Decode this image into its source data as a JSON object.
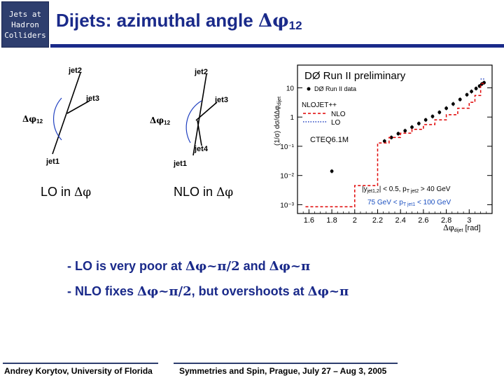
{
  "header": {
    "badge_lines": [
      "Jets at",
      "Hadron",
      "Colliders"
    ],
    "title_text": "Dijets: azimuthal angle ",
    "title_symbol": "Δφ",
    "title_subscript": "12"
  },
  "diagrams": {
    "lo": {
      "labels": [
        "jet2",
        "jet3",
        "jet1"
      ],
      "angle_label": "Δφ",
      "angle_sub": "12",
      "caption_prefix": "LO in ",
      "caption_symbol": "Δφ"
    },
    "nlo": {
      "labels": [
        "jet2",
        "jet3",
        "jet4",
        "jet1"
      ],
      "angle_label": "Δφ",
      "angle_sub": "12",
      "caption_prefix": "NLO in ",
      "caption_symbol": "Δφ"
    }
  },
  "plot": {
    "experiment": "DØ Run II preliminary",
    "ylabel": "(1/σ) dσ/dΔφ",
    "ylabel_sub": "dijet",
    "xlabel": "Δφ",
    "xlabel_sub": "dijet",
    "xunit": "[rad]",
    "legend_data": "DØ Run II data",
    "legend_nlojet": "NLOJET++",
    "legend_nlo": "NLO",
    "legend_lo": "LO",
    "pdf": "CTEQ6.1M",
    "cut1": "|y",
    "cut1_sub": "jet1,2",
    "cut1_tail": "| < 0.5, p",
    "cut1_sub2": "T jet2",
    "cut1_end": " > 40 GeV",
    "cut2": "75 GeV < p",
    "cut2_sub": "T jet1",
    "cut2_end": " < 100 GeV",
    "colors": {
      "data": "#000000",
      "nlo": "#e00000",
      "lo": "#2040c0",
      "cut2": "#1a4fc0"
    }
  },
  "chart_data": {
    "type": "scatter",
    "title": "DØ Run II preliminary",
    "xlabel": "Δφ dijet [rad]",
    "ylabel": "(1/σ) dσ/dΔφ dijet",
    "xlim": [
      1.5,
      3.2
    ],
    "ylim": [
      0.0005,
      60
    ],
    "yscale": "log",
    "x_ticks": [
      "1.6",
      "1.8",
      "2",
      "2.2",
      "2.4",
      "2.6",
      "2.8",
      "3"
    ],
    "y_ticks": [
      "10⁻³",
      "10⁻²",
      "10⁻¹",
      "1",
      "10"
    ],
    "series": [
      {
        "name": "DØ Run II data",
        "style": "points",
        "x": [
          1.8,
          2.26,
          2.32,
          2.38,
          2.44,
          2.5,
          2.56,
          2.62,
          2.68,
          2.74,
          2.8,
          2.86,
          2.92,
          2.98,
          3.02,
          3.06,
          3.09,
          3.11,
          3.13
        ],
        "y": [
          0.014,
          0.15,
          0.2,
          0.27,
          0.34,
          0.45,
          0.6,
          0.8,
          1.05,
          1.45,
          2.0,
          2.8,
          4.0,
          5.8,
          7.5,
          9.5,
          11.5,
          13.5,
          15
        ]
      },
      {
        "name": "NLO",
        "style": "dashed-step",
        "x": [
          1.57,
          2.0,
          2.2,
          2.3,
          2.4,
          2.5,
          2.6,
          2.7,
          2.8,
          2.9,
          3.0,
          3.05,
          3.1,
          3.14
        ],
        "y": [
          0.00085,
          0.0045,
          0.13,
          0.2,
          0.28,
          0.38,
          0.55,
          0.8,
          1.2,
          2.0,
          3.2,
          5.5,
          14,
          22
        ]
      },
      {
        "name": "LO",
        "style": "dotted-step",
        "x": [
          3.1,
          3.14
        ],
        "y": [
          20,
          60
        ]
      }
    ]
  },
  "bullets": [
    {
      "parts": [
        "- LO is very poor at ",
        "Δφ~π/2",
        " and ",
        "Δφ~π"
      ]
    },
    {
      "parts": [
        "- NLO fixes ",
        "Δφ~π/2",
        ", but overshoots at  ",
        "Δφ~π"
      ]
    }
  ],
  "footer": {
    "left": "Andrey Korytov, University of Florida",
    "right": "Symmetries and Spin, Prague, July 27 – Aug 3, 2005"
  }
}
